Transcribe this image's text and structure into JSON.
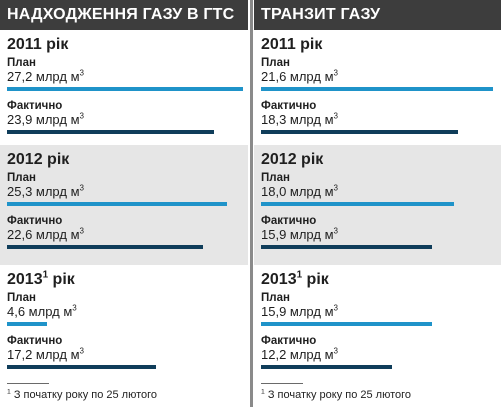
{
  "colors": {
    "header_bg": "#3d3d3d",
    "shade_bg": "#e6e6e6",
    "plan_bar": "#1f93c9",
    "fact_bar": "#0f3d5a"
  },
  "chart_data": [
    {
      "type": "bar",
      "title": "НАДХОДЖЕННЯ ГАЗУ В ГТС",
      "unit": "млрд м³",
      "categories": [
        "2011 рік",
        "2012 рік",
        "2013¹ рік"
      ],
      "series": [
        {
          "name": "План",
          "values": [
            27.2,
            25.3,
            4.6
          ]
        },
        {
          "name": "Фактично",
          "values": [
            23.9,
            22.6,
            17.2
          ]
        }
      ],
      "labels": {
        "plan": [
          "27,2 млрд м³",
          "25,3 млрд м³",
          "4,6 млрд м³"
        ],
        "fact": [
          "23,9 млрд м³",
          "22,6 млрд м³",
          "17,2 млрд м³"
        ]
      }
    },
    {
      "type": "bar",
      "title": "ТРАНЗИТ ГАЗУ",
      "unit": "млрд м³",
      "categories": [
        "2011 рік",
        "2012 рік",
        "2013¹ рік"
      ],
      "series": [
        {
          "name": "План",
          "values": [
            21.6,
            18.0,
            15.9
          ]
        },
        {
          "name": "Фактично",
          "values": [
            18.3,
            15.9,
            12.2
          ]
        }
      ],
      "labels": {
        "plan": [
          "21,6 млрд м³",
          "18,0 млрд м³",
          "15,9 млрд м³"
        ],
        "fact": [
          "18,3 млрд м³",
          "15,9 млрд м³",
          "12,2 млрд м³"
        ]
      }
    }
  ],
  "year_base": [
    "2011 рік",
    "2012 рік",
    "2013"
  ],
  "year_sup": "1",
  "year_suffix": "рік",
  "plan_label": "План",
  "fact_label": "Фактично",
  "footnote": {
    "marker": "1",
    "text": "З початку року по 25 лютого"
  }
}
